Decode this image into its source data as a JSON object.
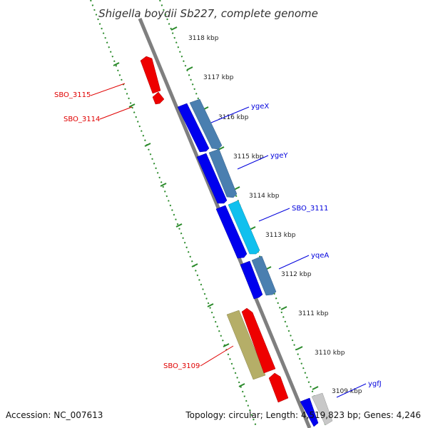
{
  "title": "Shigella boydii Sb227, complete genome",
  "footer": {
    "accession": "Accession: NC_007613",
    "topology": "Topology: circular; Length: 4,519,823 bp; Genes: 4,246"
  },
  "colors": {
    "backbone": "#888888",
    "ruler": "#2a8a2a",
    "gene_red": "#ee0000",
    "gene_blue": "#0000ee",
    "gene_steel": "#4a7fb0",
    "gene_cyan": "#10c0ee",
    "gene_olive": "#b5ae68",
    "gene_gray": "#c8c8c8",
    "label_red": "#e00000",
    "label_blue": "#0000dd"
  },
  "ticks": [
    {
      "kbp": 3118,
      "label": "3118 kbp"
    },
    {
      "kbp": 3117,
      "label": "3117 kbp"
    },
    {
      "kbp": 3116,
      "label": "3116 kbp"
    },
    {
      "kbp": 3115,
      "label": "3115 kbp"
    },
    {
      "kbp": 3114,
      "label": "3114 kbp"
    },
    {
      "kbp": 3113,
      "label": "3113 kbp"
    },
    {
      "kbp": 3112,
      "label": "3112 kbp"
    },
    {
      "kbp": 3111,
      "label": "3111 kbp"
    },
    {
      "kbp": 3110,
      "label": "3110 kbp"
    },
    {
      "kbp": 3109,
      "label": "3109 kbp"
    }
  ],
  "gene_labels": [
    {
      "text": "SBO_3115",
      "color": "red"
    },
    {
      "text": "SBO_3114",
      "color": "red"
    },
    {
      "text": "ygeX",
      "color": "blue"
    },
    {
      "text": "ygeY",
      "color": "blue"
    },
    {
      "text": "SBO_3111",
      "color": "blue"
    },
    {
      "text": "yqeA",
      "color": "blue"
    },
    {
      "text": "SBO_3109",
      "color": "red"
    },
    {
      "text": "ygfJ",
      "color": "blue"
    }
  ]
}
